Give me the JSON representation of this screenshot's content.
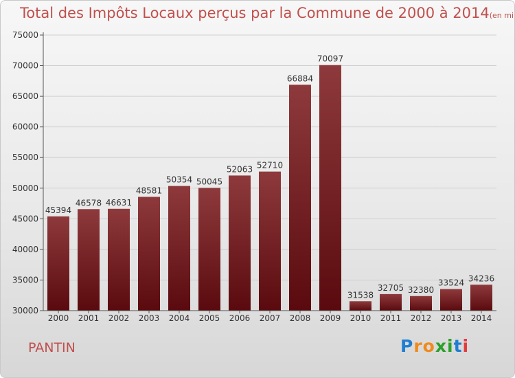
{
  "title": "Total des Impôts Locaux perçus par la Commune de 2000 à 2014",
  "unit": "(en milliers d'€)",
  "commune": "PANTIN",
  "logo": {
    "letters": [
      "P",
      "r",
      "o",
      "x",
      "i",
      "t",
      "i"
    ],
    "colors": [
      "#1e7fd0",
      "#f08a1c",
      "#f08a1c",
      "#2aa02a",
      "#2aa02a",
      "#1e7fd0",
      "#e33b3b"
    ]
  },
  "colors": {
    "accent": "#c0504d",
    "bar_top": "#8e3a3c",
    "bar_bottom": "#5a0a0e"
  },
  "chart_data": {
    "type": "bar",
    "categories": [
      "2000",
      "2001",
      "2002",
      "2003",
      "2004",
      "2005",
      "2006",
      "2007",
      "2008",
      "2009",
      "2010",
      "2011",
      "2012",
      "2013",
      "2014"
    ],
    "values": [
      45394,
      46578,
      46631,
      48581,
      50354,
      50045,
      52063,
      52710,
      66884,
      70097,
      31538,
      32705,
      32380,
      33524,
      34236
    ],
    "ylim": [
      30000,
      75000
    ],
    "yticks": [
      30000,
      35000,
      40000,
      45000,
      50000,
      55000,
      60000,
      65000,
      70000,
      75000
    ],
    "grid": true,
    "xlabel": "",
    "ylabel": ""
  }
}
